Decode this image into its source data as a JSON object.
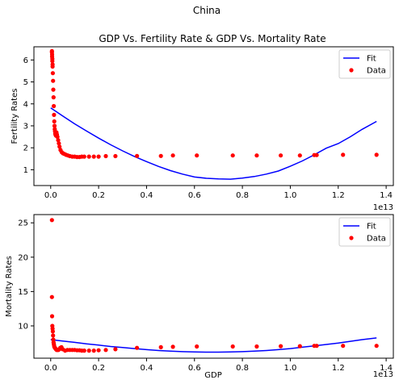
{
  "figure": {
    "suptitle": "China",
    "accent_colors": {
      "fit": "#0000ff",
      "data": "#ff0000"
    }
  },
  "chart_data": [
    {
      "type": "scatter",
      "title": "GDP Vs. Fertility Rate & GDP Vs. Mortality Rate",
      "xlabel": "",
      "ylabel": "Fertility Rates",
      "x_offset_label": "1e13",
      "xlim": [
        -0.07,
        1.43
      ],
      "ylim": [
        0.28,
        6.6
      ],
      "x_ticks": [
        0.0,
        0.2,
        0.4,
        0.6,
        0.8,
        1.0,
        1.2,
        1.4
      ],
      "x_tick_labels": [
        "0.0",
        "0.2",
        "0.4",
        "0.6",
        "0.8",
        "1.0",
        "1.2",
        "1.4"
      ],
      "y_ticks": [
        1,
        2,
        3,
        4,
        5,
        6
      ],
      "y_tick_labels": [
        "1",
        "2",
        "3",
        "4",
        "5",
        "6"
      ],
      "grid": false,
      "legend_position": "top-right",
      "series": [
        {
          "name": "Fit",
          "kind": "line",
          "color": "#0000ff",
          "x": [
            0.0,
            0.05,
            0.1,
            0.15,
            0.2,
            0.25,
            0.3,
            0.35,
            0.4,
            0.45,
            0.5,
            0.55,
            0.6,
            0.65,
            0.7,
            0.75,
            0.8,
            0.85,
            0.9,
            0.95,
            1.0,
            1.05,
            1.1,
            1.15,
            1.2,
            1.25,
            1.3,
            1.36
          ],
          "y": [
            3.82,
            3.45,
            3.09,
            2.76,
            2.44,
            2.14,
            1.86,
            1.6,
            1.37,
            1.15,
            0.96,
            0.8,
            0.67,
            0.61,
            0.58,
            0.57,
            0.62,
            0.69,
            0.8,
            0.94,
            1.16,
            1.4,
            1.68,
            1.98,
            2.19,
            2.5,
            2.84,
            3.2
          ]
        },
        {
          "name": "Data",
          "kind": "scatter",
          "color": "#ff0000",
          "x": [
            0.005,
            0.005,
            0.006,
            0.006,
            0.007,
            0.007,
            0.008,
            0.008,
            0.009,
            0.01,
            0.011,
            0.012,
            0.013,
            0.014,
            0.015,
            0.016,
            0.017,
            0.018,
            0.019,
            0.02,
            0.022,
            0.024,
            0.026,
            0.028,
            0.031,
            0.034,
            0.037,
            0.041,
            0.046,
            0.051,
            0.057,
            0.064,
            0.072,
            0.08,
            0.09,
            0.1,
            0.11,
            0.12,
            0.13,
            0.14,
            0.16,
            0.18,
            0.2,
            0.23,
            0.27,
            0.36,
            0.46,
            0.51,
            0.61,
            0.76,
            0.86,
            0.96,
            1.04,
            1.1,
            1.11,
            1.22,
            1.36
          ],
          "y": [
            6.4,
            6.35,
            6.25,
            6.15,
            6.05,
            5.95,
            5.8,
            5.7,
            5.4,
            5.05,
            4.65,
            4.3,
            3.9,
            3.5,
            3.2,
            3.0,
            2.85,
            2.75,
            2.65,
            2.6,
            2.55,
            2.7,
            2.6,
            2.5,
            2.35,
            2.2,
            2.05,
            1.9,
            1.8,
            1.75,
            1.72,
            1.68,
            1.65,
            1.62,
            1.6,
            1.6,
            1.58,
            1.58,
            1.6,
            1.6,
            1.6,
            1.6,
            1.6,
            1.62,
            1.62,
            1.63,
            1.63,
            1.65,
            1.65,
            1.65,
            1.65,
            1.65,
            1.65,
            1.67,
            1.67,
            1.68,
            1.68
          ]
        }
      ]
    },
    {
      "type": "scatter",
      "title": "",
      "xlabel": "GDP",
      "ylabel": "Mortality Rates",
      "x_offset_label": "1e13",
      "xlim": [
        -0.07,
        1.43
      ],
      "ylim": [
        5.3,
        26.2
      ],
      "x_ticks": [
        0.0,
        0.2,
        0.4,
        0.6,
        0.8,
        1.0,
        1.2,
        1.4
      ],
      "x_tick_labels": [
        "0.0",
        "0.2",
        "0.4",
        "0.6",
        "0.8",
        "1.0",
        "1.2",
        "1.4"
      ],
      "y_ticks": [
        10,
        15,
        20,
        25
      ],
      "y_tick_labels": [
        "10",
        "15",
        "20",
        "25"
      ],
      "grid": false,
      "legend_position": "top-right",
      "series": [
        {
          "name": "Fit",
          "kind": "line",
          "color": "#0000ff",
          "x": [
            0.0,
            0.05,
            0.1,
            0.15,
            0.2,
            0.25,
            0.3,
            0.35,
            0.4,
            0.45,
            0.5,
            0.55,
            0.6,
            0.65,
            0.7,
            0.75,
            0.8,
            0.85,
            0.9,
            0.95,
            1.0,
            1.05,
            1.1,
            1.15,
            1.2,
            1.25,
            1.3,
            1.36
          ],
          "y": [
            8.0,
            7.8,
            7.6,
            7.38,
            7.2,
            7.0,
            6.85,
            6.7,
            6.55,
            6.42,
            6.32,
            6.25,
            6.2,
            6.18,
            6.18,
            6.2,
            6.25,
            6.32,
            6.42,
            6.55,
            6.7,
            6.9,
            7.1,
            7.3,
            7.5,
            7.75,
            8.0,
            8.25
          ]
        },
        {
          "name": "Data",
          "kind": "scatter",
          "color": "#ff0000",
          "x": [
            0.005,
            0.005,
            0.006,
            0.007,
            0.008,
            0.009,
            0.01,
            0.011,
            0.012,
            0.013,
            0.014,
            0.015,
            0.016,
            0.018,
            0.02,
            0.022,
            0.025,
            0.028,
            0.032,
            0.036,
            0.04,
            0.045,
            0.05,
            0.06,
            0.07,
            0.08,
            0.09,
            0.1,
            0.11,
            0.12,
            0.13,
            0.14,
            0.16,
            0.18,
            0.2,
            0.23,
            0.27,
            0.36,
            0.46,
            0.51,
            0.61,
            0.76,
            0.86,
            0.96,
            1.04,
            1.1,
            1.11,
            1.22,
            1.36
          ],
          "y": [
            25.4,
            14.2,
            11.4,
            10.0,
            9.6,
            9.2,
            8.6,
            8.0,
            7.6,
            7.4,
            7.2,
            7.0,
            6.9,
            6.8,
            6.7,
            6.6,
            6.5,
            6.5,
            6.5,
            6.6,
            6.8,
            6.9,
            6.6,
            6.4,
            6.5,
            6.5,
            6.5,
            6.5,
            6.45,
            6.45,
            6.4,
            6.4,
            6.4,
            6.4,
            6.45,
            6.5,
            6.6,
            6.8,
            6.9,
            6.95,
            7.0,
            7.0,
            7.0,
            7.05,
            7.05,
            7.1,
            7.1,
            7.1,
            7.1
          ]
        }
      ]
    }
  ]
}
